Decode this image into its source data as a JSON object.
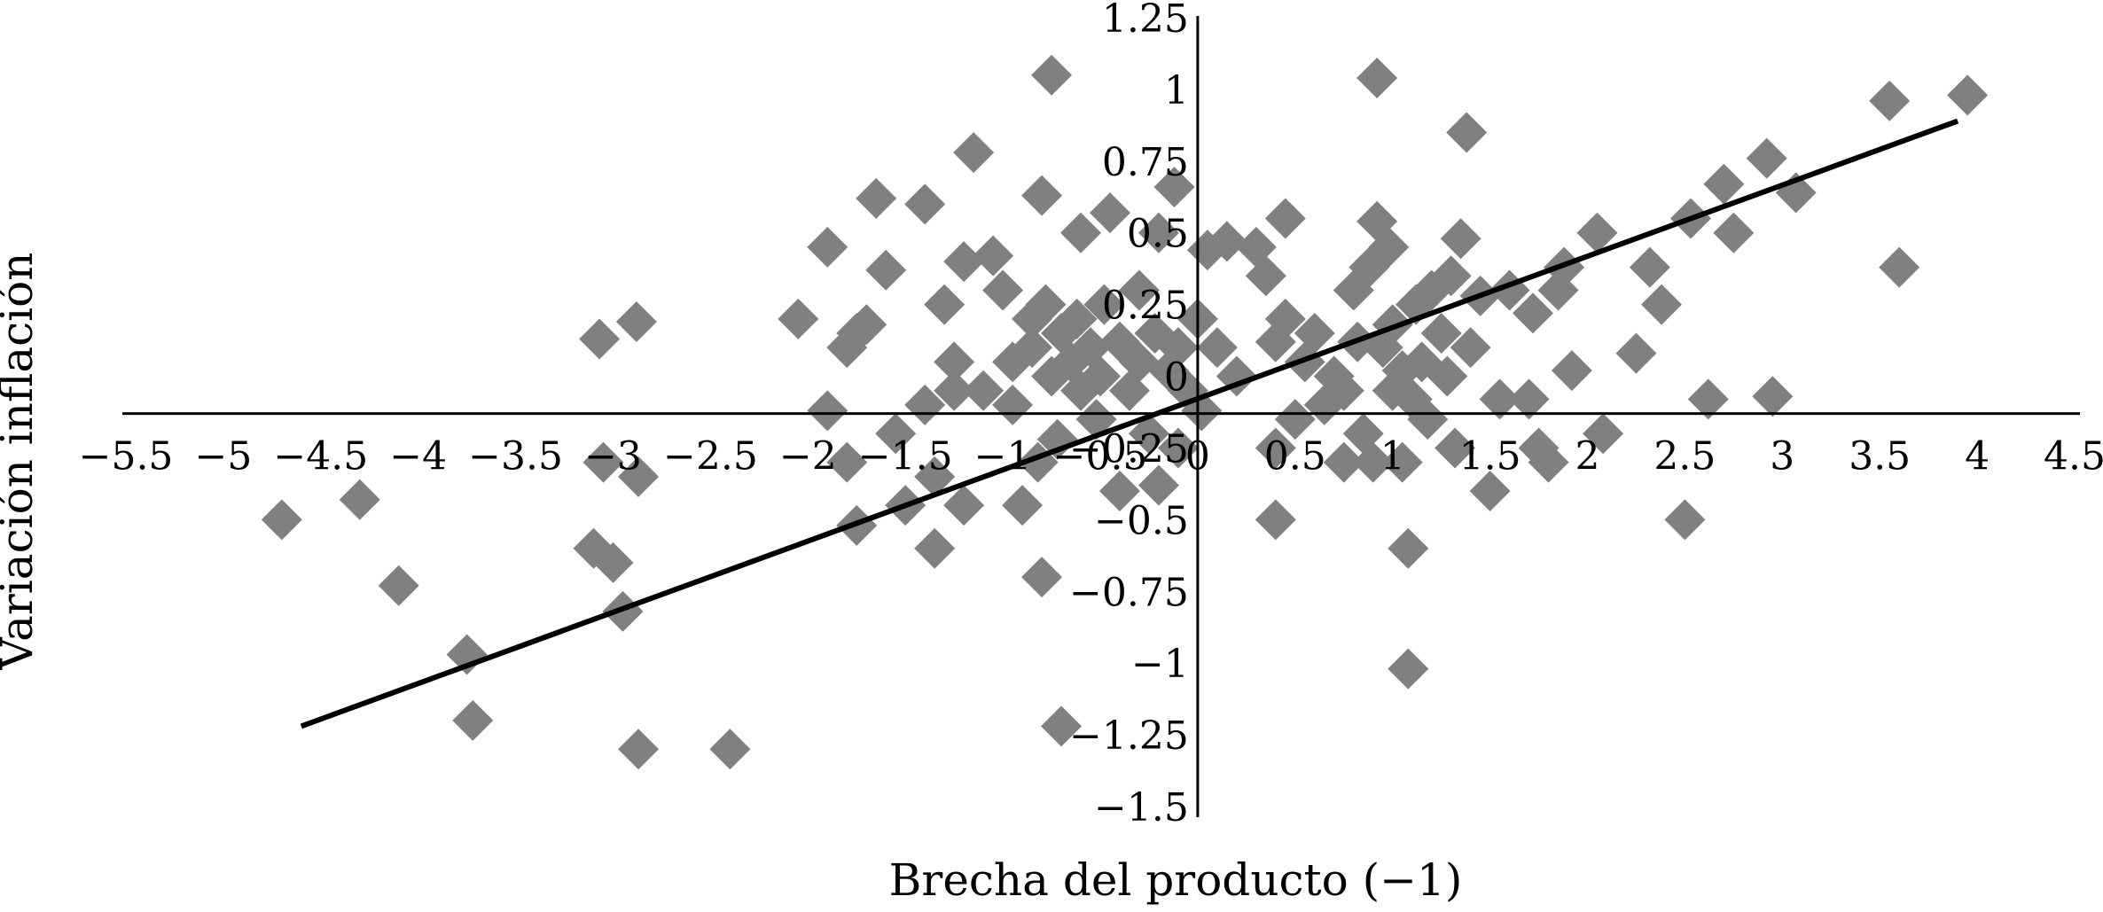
{
  "chart_data": {
    "type": "scatter",
    "title": "",
    "xlabel": "Brecha del producto (−1)",
    "ylabel": "Variación inflación",
    "xlim": [
      -5.5,
      4.5
    ],
    "ylim": [
      -1.5,
      1.25
    ],
    "grid": false,
    "legend": "none",
    "marker": "diamond",
    "colors": {
      "points": "#808080",
      "trendline": "#000000",
      "axes": "#000000"
    },
    "x_ticks": [
      "−5.5",
      "−5",
      "−4.5",
      "−4",
      "−3.5",
      "−3",
      "−2.5",
      "−2",
      "−1.5",
      "−1",
      "−0.5",
      "0",
      "0.5",
      "1",
      "1.5",
      "2",
      "2.5",
      "3",
      "3.5",
      "4",
      "4.5"
    ],
    "x_tick_values": [
      -5.5,
      -5,
      -4.5,
      -4,
      -3.5,
      -3,
      -2.5,
      -2,
      -1.5,
      -1,
      -0.5,
      0,
      0.5,
      1,
      1.5,
      2,
      2.5,
      3,
      3.5,
      4,
      4.5
    ],
    "y_ticks": [
      "1.25",
      "1",
      "0.75",
      "0.5",
      "0.25",
      "0",
      "−0.25",
      "−0.5",
      "−0.75",
      "−1",
      "−1.25",
      "−1.5"
    ],
    "y_tick_values": [
      1.25,
      1,
      0.75,
      0.5,
      0.25,
      0,
      -0.25,
      -0.5,
      -0.75,
      -1,
      -1.25,
      -1.5
    ],
    "trendline": {
      "x": [
        -4.6,
        3.9
      ],
      "y": [
        -1.22,
        0.89
      ]
    },
    "points": [
      [
        -4.7,
        -0.5
      ],
      [
        -4.3,
        -0.43
      ],
      [
        -4.1,
        -0.73
      ],
      [
        -3.75,
        -0.97
      ],
      [
        -3.72,
        -1.2
      ],
      [
        -3.07,
        0.13
      ],
      [
        -2.88,
        0.19
      ],
      [
        -3.05,
        -0.3
      ],
      [
        -2.87,
        -0.35
      ],
      [
        -3.1,
        -0.6
      ],
      [
        -3.0,
        -0.65
      ],
      [
        -2.95,
        -0.82
      ],
      [
        -2.87,
        -1.3
      ],
      [
        -2.4,
        -1.3
      ],
      [
        -2.05,
        0.2
      ],
      [
        -1.9,
        0.45
      ],
      [
        -1.9,
        -0.12
      ],
      [
        -1.8,
        0.1
      ],
      [
        -1.75,
        0.15
      ],
      [
        -1.7,
        0.18
      ],
      [
        -1.8,
        -0.3
      ],
      [
        -1.75,
        -0.52
      ],
      [
        -1.6,
        0.37
      ],
      [
        -1.65,
        0.62
      ],
      [
        -1.55,
        -0.2
      ],
      [
        -1.5,
        -0.45
      ],
      [
        -1.4,
        0.6
      ],
      [
        -1.4,
        -0.1
      ],
      [
        -1.35,
        -0.35
      ],
      [
        -1.35,
        -0.6
      ],
      [
        -1.3,
        0.25
      ],
      [
        -1.25,
        0.05
      ],
      [
        -1.2,
        0.4
      ],
      [
        -1.25,
        -0.05
      ],
      [
        -1.2,
        -0.45
      ],
      [
        -1.15,
        0.78
      ],
      [
        -1.1,
        -0.05
      ],
      [
        -1.05,
        0.42
      ],
      [
        -1.0,
        0.3
      ],
      [
        -0.95,
        -0.1
      ],
      [
        -0.95,
        0.05
      ],
      [
        -0.9,
        -0.45
      ],
      [
        -0.85,
        0.1
      ],
      [
        -0.85,
        0.2
      ],
      [
        -0.82,
        -0.3
      ],
      [
        -0.8,
        0.63
      ],
      [
        -0.8,
        -0.7
      ],
      [
        -0.78,
        0.25
      ],
      [
        -0.75,
        0.0
      ],
      [
        -0.75,
        1.05
      ],
      [
        -0.72,
        -0.22
      ],
      [
        -0.7,
        0.15
      ],
      [
        -0.7,
        -1.22
      ],
      [
        -0.65,
        0.05
      ],
      [
        -0.62,
        0.2
      ],
      [
        -0.6,
        -0.05
      ],
      [
        -0.6,
        0.5
      ],
      [
        -0.55,
        0.1
      ],
      [
        -0.52,
        -0.15
      ],
      [
        -0.5,
        0.0
      ],
      [
        -0.48,
        0.25
      ],
      [
        -0.45,
        0.57
      ],
      [
        -0.4,
        -0.4
      ],
      [
        -0.4,
        0.12
      ],
      [
        -0.35,
        -0.05
      ],
      [
        -0.3,
        0.05
      ],
      [
        -0.3,
        0.3
      ],
      [
        -0.25,
        -0.2
      ],
      [
        -0.22,
        0.15
      ],
      [
        -0.2,
        -0.38
      ],
      [
        -0.2,
        0.5
      ],
      [
        -0.15,
        0.02
      ],
      [
        -0.12,
        0.66
      ],
      [
        -0.1,
        -0.25
      ],
      [
        -0.1,
        0.1
      ],
      [
        -0.05,
        -0.05
      ],
      [
        0.0,
        0.2
      ],
      [
        0.02,
        -0.12
      ],
      [
        0.05,
        0.44
      ],
      [
        0.1,
        0.1
      ],
      [
        0.15,
        0.47
      ],
      [
        0.2,
        0.0
      ],
      [
        0.3,
        0.45
      ],
      [
        0.35,
        0.35
      ],
      [
        0.4,
        0.12
      ],
      [
        0.4,
        -0.25
      ],
      [
        0.4,
        -0.5
      ],
      [
        0.45,
        0.55
      ],
      [
        0.45,
        0.2
      ],
      [
        0.5,
        -0.15
      ],
      [
        0.55,
        0.05
      ],
      [
        0.6,
        0.15
      ],
      [
        0.65,
        -0.1
      ],
      [
        0.7,
        0.0
      ],
      [
        0.75,
        -0.3
      ],
      [
        0.75,
        -0.05
      ],
      [
        0.8,
        0.3
      ],
      [
        0.82,
        0.12
      ],
      [
        0.85,
        -0.2
      ],
      [
        0.88,
        0.38
      ],
      [
        0.9,
        -0.3
      ],
      [
        0.92,
        1.04
      ],
      [
        0.92,
        0.54
      ],
      [
        0.95,
        0.1
      ],
      [
        0.98,
        0.45
      ],
      [
        1.0,
        -0.05
      ],
      [
        1.0,
        0.18
      ],
      [
        1.05,
        -0.3
      ],
      [
        1.05,
        0.02
      ],
      [
        1.08,
        -0.6
      ],
      [
        1.08,
        -1.02
      ],
      [
        1.1,
        -0.08
      ],
      [
        1.12,
        0.25
      ],
      [
        1.15,
        0.05
      ],
      [
        1.18,
        -0.15
      ],
      [
        1.2,
        0.3
      ],
      [
        1.25,
        0.15
      ],
      [
        1.28,
        0.0
      ],
      [
        1.3,
        0.35
      ],
      [
        1.32,
        -0.25
      ],
      [
        1.35,
        0.48
      ],
      [
        1.38,
        0.85
      ],
      [
        1.4,
        0.1
      ],
      [
        1.45,
        0.28
      ],
      [
        1.5,
        -0.4
      ],
      [
        1.55,
        -0.08
      ],
      [
        1.6,
        0.3
      ],
      [
        1.7,
        -0.08
      ],
      [
        1.72,
        0.22
      ],
      [
        1.75,
        -0.25
      ],
      [
        1.8,
        -0.3
      ],
      [
        1.85,
        0.3
      ],
      [
        1.88,
        0.38
      ],
      [
        1.92,
        0.02
      ],
      [
        2.05,
        0.5
      ],
      [
        2.08,
        -0.2
      ],
      [
        2.25,
        0.08
      ],
      [
        2.32,
        0.38
      ],
      [
        2.38,
        0.25
      ],
      [
        2.5,
        -0.5
      ],
      [
        2.53,
        0.55
      ],
      [
        2.62,
        -0.08
      ],
      [
        2.7,
        0.67
      ],
      [
        2.75,
        0.5
      ],
      [
        2.92,
        0.76
      ],
      [
        2.95,
        -0.07
      ],
      [
        3.07,
        0.64
      ],
      [
        3.55,
        0.96
      ],
      [
        3.6,
        0.38
      ],
      [
        3.95,
        0.98
      ]
    ]
  }
}
